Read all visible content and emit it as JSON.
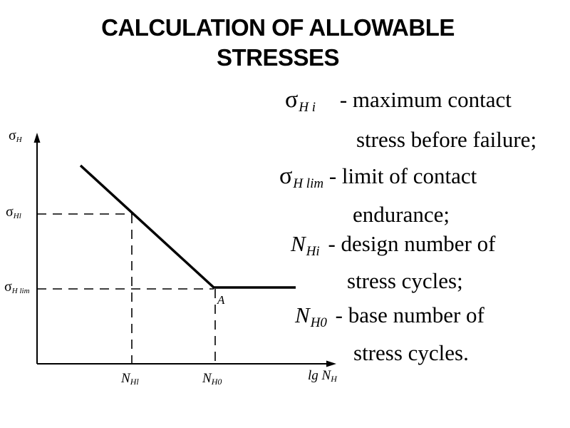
{
  "title": {
    "line1": "CALCULATION OF ALLOWABLE",
    "line2": "STRESSES"
  },
  "graph": {
    "y_axis_label": {
      "base": "σ",
      "sub": "H"
    },
    "y_tick_1": {
      "base": "σ",
      "sub": "Hl"
    },
    "y_tick_2": {
      "base": "σ",
      "sub": "H lim"
    },
    "x_tick_1": {
      "base": "N",
      "sub": "Hl"
    },
    "x_tick_2": {
      "base": "N",
      "sub": "H0"
    },
    "x_axis_label": {
      "base": "lg N",
      "sub": "H"
    },
    "point_label": "A"
  },
  "definitions": [
    {
      "sym_base": "σ",
      "sym_sub": "H i",
      "line1": "- maximum contact",
      "line2": "stress before failure;"
    },
    {
      "sym_base": "σ",
      "sym_sub": "H lim",
      "line1": "-  limit of contact",
      "line2": "endurance;"
    },
    {
      "sym_base": "N",
      "sym_sub": "Hi",
      "line1": "- design number of",
      "line2": "stress cycles;"
    },
    {
      "sym_base": "N",
      "sym_sub": "H0",
      "line1": "- base number of",
      "line2": "stress cycles."
    }
  ]
}
